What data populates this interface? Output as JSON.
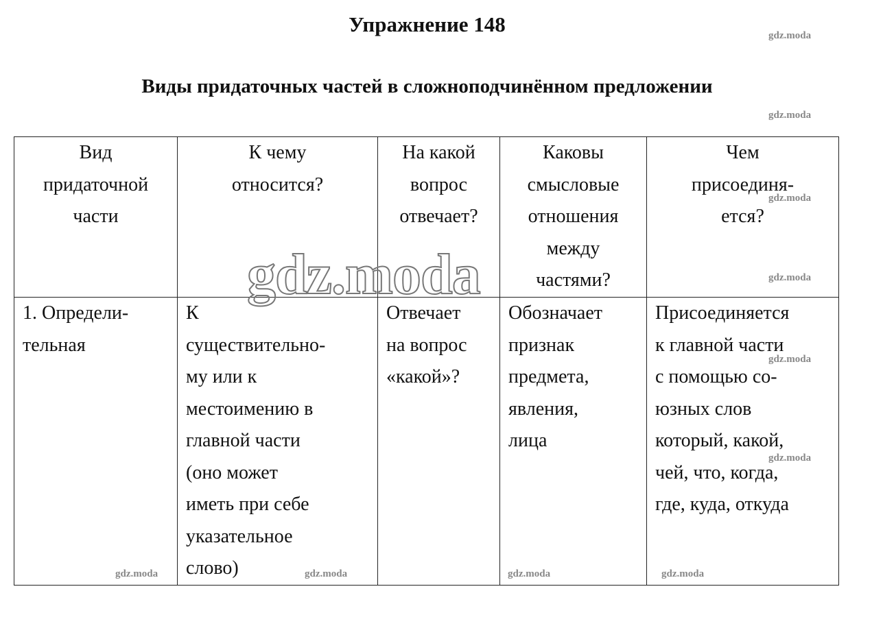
{
  "title": "Упражнение 148",
  "subtitle": "Виды придаточных частей в сложноподчинённом предложении",
  "watermark": "gdz.moda",
  "table": {
    "headers": [
      "Вид\nпридаточной\nчасти",
      "К чему\nотносится?",
      "На какой\nвопрос\nотвечает?",
      "Каковы\nсмысловые\nотношения\nмежду\nчастями?",
      "Чем\nприсоединя-\nется?"
    ],
    "rows": [
      [
        "1. Определи-\nтельная",
        "К\nсуществительно-\nму или к\nместоимению в\nглавной части\n(оно может\nиметь при себе\nуказательное\nслово)",
        "Отвечает\nна вопрос\n«какой»?",
        "Обозначает\nпризнак\nпредмета,\nявления,\nлица",
        "Присоединяется\nк главной части\nс помощью со-\nюзных слов\nкоторый, какой,\nчей, что, когда,\nгде, куда, откуда"
      ]
    ]
  }
}
